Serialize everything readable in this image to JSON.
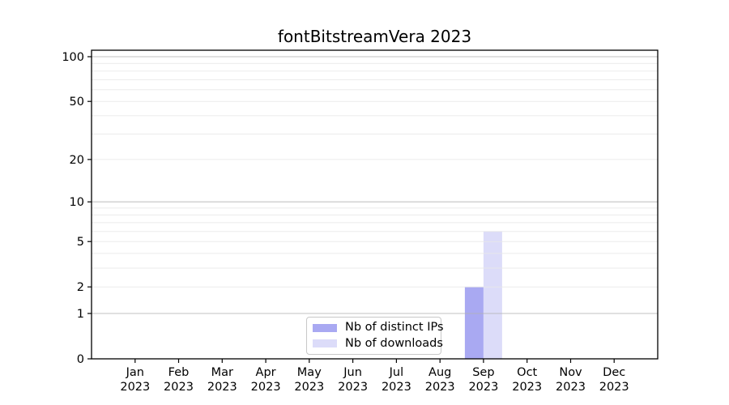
{
  "figure": {
    "background": "#ffffff"
  },
  "chart_data": {
    "type": "bar",
    "title": "fontBitstreamVera 2023",
    "xlabel": "",
    "ylabel": "",
    "categories": [
      "Jan",
      "Feb",
      "Mar",
      "Apr",
      "May",
      "Jun",
      "Jul",
      "Aug",
      "Sep",
      "Oct",
      "Nov",
      "Dec"
    ],
    "category_year": "2023",
    "series": [
      {
        "name": "Nb of distinct IPs",
        "color": "#a9a9f2",
        "values": [
          0,
          0,
          0,
          0,
          0,
          0,
          0,
          0,
          2,
          0,
          0,
          0
        ]
      },
      {
        "name": "Nb of downloads",
        "color": "#dcdcf9",
        "values": [
          0,
          0,
          0,
          0,
          0,
          0,
          0,
          0,
          6,
          0,
          0,
          0
        ]
      }
    ],
    "yscale": "log1p",
    "ylim": [
      0,
      110
    ],
    "y_tick_values": [
      0,
      1,
      2,
      5,
      10,
      20,
      50,
      100
    ],
    "y_major_gridlines": [
      1,
      10,
      100
    ],
    "y_minor_gridlines": [
      2,
      3,
      4,
      5,
      6,
      7,
      8,
      9,
      20,
      30,
      40,
      50,
      60,
      70,
      80,
      90
    ],
    "grid": "horizontal",
    "legend_position": "lower center",
    "colors": {
      "spine": "#000000",
      "tick": "#000000",
      "text": "#000000",
      "major_grid": "#b3b3b3",
      "minor_grid": "#e7e7e7"
    }
  }
}
